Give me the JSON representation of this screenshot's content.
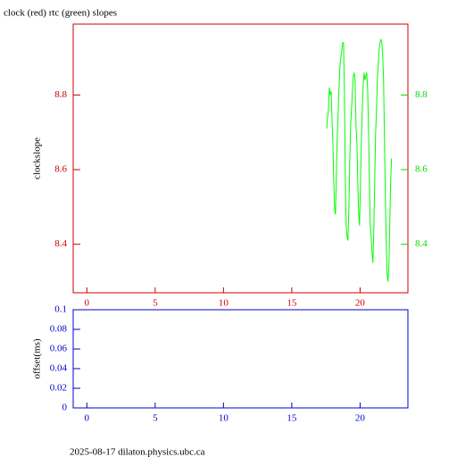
{
  "chart_data": [
    {
      "type": "line",
      "title": "clock (red) rtc (green) slopes",
      "ylabel": "clockslope",
      "xlim": [
        -1,
        23.5
      ],
      "xticks": [
        0,
        5,
        10,
        15,
        20
      ],
      "ylim": [
        8.27,
        8.99
      ],
      "yticks": [
        8.4,
        8.6,
        8.8
      ],
      "y2lim": [
        8.27,
        8.99
      ],
      "y2ticks": [
        8.4,
        8.6,
        8.8
      ],
      "axis_color": "#cc0000",
      "y2_color": "#00dd00",
      "series": [
        {
          "color": "#00ff00",
          "axis": "y2",
          "x": [
            17.55,
            17.62,
            17.68,
            17.75,
            17.81,
            17.88,
            17.94,
            18.01,
            18.07,
            18.14,
            18.2,
            18.27,
            18.33,
            18.4,
            18.46,
            18.53,
            18.59,
            18.66,
            18.72,
            18.79,
            18.85,
            18.92,
            18.98,
            19.05,
            19.11,
            19.18,
            19.24,
            19.31,
            19.37,
            19.44,
            19.5,
            19.57,
            19.63,
            19.7,
            19.77,
            19.83,
            19.9,
            19.96,
            20.03,
            20.09,
            20.16,
            20.22,
            20.29,
            20.35,
            20.42,
            20.48,
            20.55,
            20.61,
            20.68,
            20.74,
            20.81,
            20.87,
            20.94,
            21.0,
            21.07,
            21.13,
            21.2,
            21.26,
            21.33,
            21.39,
            21.46,
            21.52,
            21.59,
            21.65,
            21.72,
            21.78,
            21.85,
            21.91,
            21.98,
            22.04,
            22.11,
            22.17,
            22.24,
            22.3
          ],
          "values": [
            8.71,
            8.74,
            8.76,
            8.82,
            8.8,
            8.81,
            8.74,
            8.67,
            8.57,
            8.49,
            8.48,
            8.6,
            8.69,
            8.76,
            8.82,
            8.88,
            8.9,
            8.92,
            8.94,
            8.94,
            8.81,
            8.57,
            8.45,
            8.42,
            8.41,
            8.5,
            8.62,
            8.72,
            8.76,
            8.81,
            8.85,
            8.86,
            8.84,
            8.72,
            8.67,
            8.57,
            8.48,
            8.45,
            8.57,
            8.67,
            8.76,
            8.82,
            8.86,
            8.84,
            8.85,
            8.86,
            8.82,
            8.72,
            8.57,
            8.45,
            8.42,
            8.38,
            8.35,
            8.43,
            8.57,
            8.69,
            8.76,
            8.84,
            8.88,
            8.92,
            8.94,
            8.95,
            8.94,
            8.91,
            8.84,
            8.69,
            8.53,
            8.41,
            8.32,
            8.3,
            8.34,
            8.45,
            8.57,
            8.63
          ]
        }
      ]
    },
    {
      "type": "line",
      "ylabel": "offset(ms)",
      "xlim": [
        -1,
        23.5
      ],
      "xticks": [
        0,
        5,
        10,
        15,
        20
      ],
      "ylim": [
        0,
        0.1
      ],
      "yticks": [
        0,
        0.02,
        0.04,
        0.06,
        0.08,
        0.1
      ],
      "axis_color": "#0000cc"
    }
  ],
  "footer": "2025-08-17 dilaton.physics.ubc.ca"
}
